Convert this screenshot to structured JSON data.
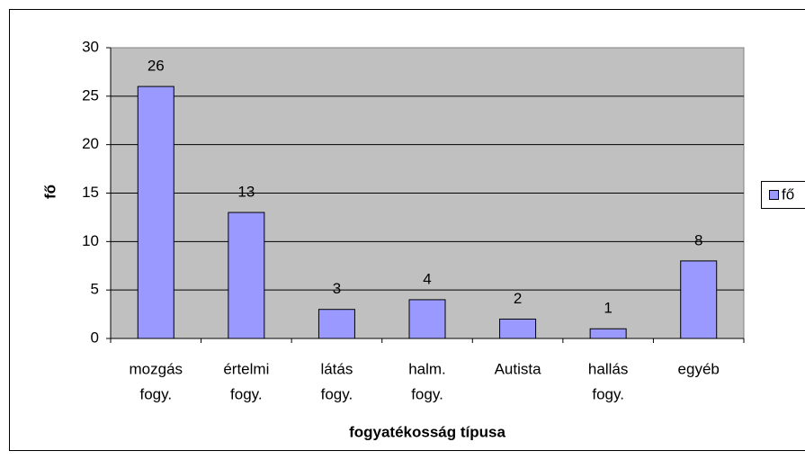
{
  "chart_data": {
    "type": "bar",
    "categories": [
      [
        "mozgás",
        "fogy."
      ],
      [
        "értelmi",
        "fogy."
      ],
      [
        "látás",
        "fogy."
      ],
      [
        "halm.",
        "fogy."
      ],
      [
        "Autista"
      ],
      [
        "hallás",
        "fogy."
      ],
      [
        "egyéb"
      ]
    ],
    "series": [
      {
        "name": "fő",
        "color": "#9999ff",
        "values": [
          26,
          13,
          3,
          4,
          2,
          1,
          8
        ]
      }
    ],
    "x_label": "fogyatékosság típusa",
    "y_label": "fő",
    "ylim": [
      0,
      30
    ],
    "yticks": [
      0,
      5,
      10,
      15,
      20,
      25,
      30
    ],
    "grid": true,
    "legend": "right",
    "plot_background": "#c0c0c0"
  }
}
